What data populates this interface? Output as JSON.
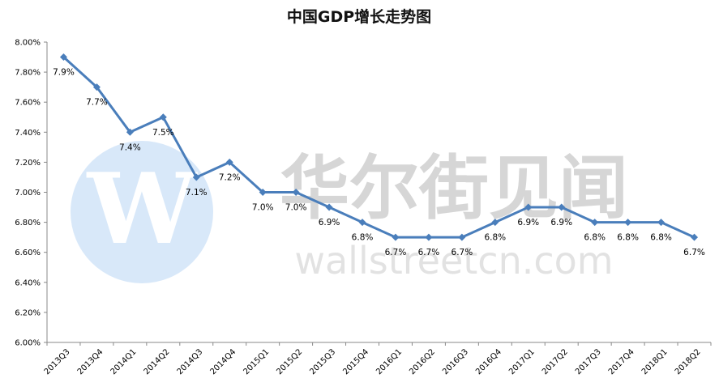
{
  "watermark": {
    "logo_letter": "W",
    "cn_text": "华尔街见闻",
    "url_text": "wallstreetcn.com"
  },
  "chart_data": {
    "type": "line",
    "title": "中国GDP增长走势图",
    "xlabel": "",
    "ylabel": "",
    "ylim": [
      6.0,
      8.0
    ],
    "yticks": [
      "6.00%",
      "6.20%",
      "6.40%",
      "6.60%",
      "6.80%",
      "7.00%",
      "7.20%",
      "7.40%",
      "7.60%",
      "7.80%",
      "8.00%"
    ],
    "grid": false,
    "legend": "none",
    "color": "#4a7ebb",
    "categories": [
      "2013Q3",
      "2013Q4",
      "2014Q1",
      "2014Q2",
      "2014Q3",
      "2014Q4",
      "2015Q1",
      "2015Q2",
      "2015Q3",
      "2015Q4",
      "2016Q1",
      "2016Q2",
      "2016Q3",
      "2016Q4",
      "2017Q1",
      "2017Q2",
      "2017Q3",
      "2017Q4",
      "2018Q1",
      "2018Q2"
    ],
    "values": [
      7.9,
      7.7,
      7.4,
      7.5,
      7.1,
      7.2,
      7.0,
      7.0,
      6.9,
      6.8,
      6.7,
      6.7,
      6.7,
      6.8,
      6.9,
      6.9,
      6.8,
      6.8,
      6.8,
      6.7
    ],
    "data_labels": [
      "7.9%",
      "7.7%",
      "7.4%",
      "7.5%",
      "7.1%",
      "7.2%",
      "7.0%",
      "7.0%",
      "6.9%",
      "6.8%",
      "6.7%",
      "6.7%",
      "6.7%",
      "6.8%",
      "6.9%",
      "6.9%",
      "6.8%",
      "6.8%",
      "6.8%",
      "6.7%"
    ]
  }
}
